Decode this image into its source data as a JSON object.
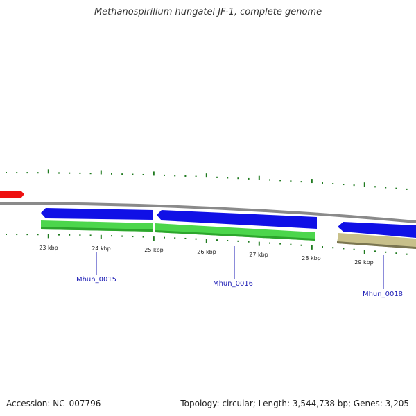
{
  "title": "Methanospirillum hungatei JF-1, complete genome",
  "footer": {
    "accession": "Accession: NC_007796",
    "summary": "Topology: circular; Length: 3,544,738 bp; Genes: 3,205"
  },
  "colors": {
    "backbone": "#8a8a8a",
    "forward_gene": "#1010e6",
    "reverse_gene": "#2ca52c",
    "cds_green": "#4cd64c",
    "pseudo_gene": "#c8c08a",
    "marker": "#ee1111",
    "ticks": "#1f7a1f",
    "gene_label": "#1a1ab4"
  },
  "scale": {
    "tick_labels": [
      "23 kbp",
      "24 kbp",
      "25 kbp",
      "26 kbp",
      "27 kbp",
      "28 kbp",
      "29 kbp"
    ]
  },
  "genes": [
    {
      "locus": "Mhun_0015"
    },
    {
      "locus": "Mhun_0016"
    },
    {
      "locus": "Mhun_0018"
    }
  ]
}
